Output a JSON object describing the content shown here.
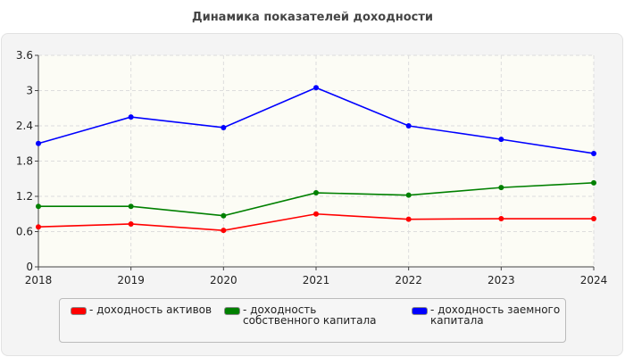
{
  "title": "Динамика показателей доходности",
  "chart_data": {
    "type": "line",
    "title": "Динамика показателей доходности",
    "x": [
      "2018",
      "2019",
      "2020",
      "2021",
      "2022",
      "2023",
      "2024"
    ],
    "ylim": [
      0,
      3.6
    ],
    "yticks": [
      "0",
      "0.6",
      "1.2",
      "1.8",
      "2.4",
      "3",
      "3.6"
    ],
    "grid": true,
    "legend": "bottom",
    "series": [
      {
        "name": "- доходность активов",
        "color": "#ff0000",
        "values": [
          0.68,
          0.73,
          0.62,
          0.9,
          0.81,
          0.82,
          0.82
        ]
      },
      {
        "name": "- доходность собственного капитала",
        "color": "#008000",
        "values": [
          1.03,
          1.03,
          0.87,
          1.26,
          1.22,
          1.35,
          1.43
        ]
      },
      {
        "name": "- доходность заемного капитала",
        "color": "#0000ff",
        "values": [
          2.1,
          2.55,
          2.37,
          3.05,
          2.4,
          2.17,
          1.93
        ]
      }
    ]
  }
}
